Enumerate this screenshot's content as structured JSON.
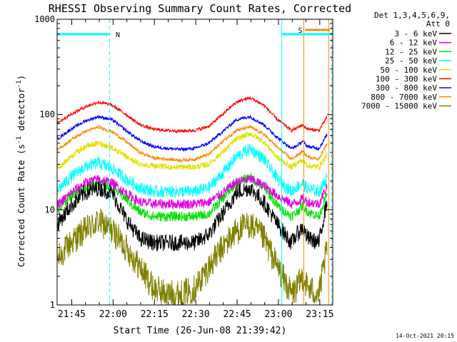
{
  "chart_data": {
    "type": "line",
    "title": "RHESSI Observing Summary Count Rates, Corrected",
    "xlabel": "Start Time (26-Jun-08 21:39:42)",
    "ylabel_main": "Corrected Count Rate (s",
    "ylabel_exp1": "-1",
    "ylabel_mid": " detector",
    "ylabel_exp2": "-1",
    "ylabel_end": ")",
    "yscale": "log",
    "ylim": [
      1,
      1000
    ],
    "xlim_minutes": [
      0,
      100
    ],
    "x_tick_minutes": [
      5.3,
      20.3,
      35.3,
      50.3,
      65.3,
      80.3,
      95.3
    ],
    "x_tick_labels": [
      "21:45",
      "22:00",
      "22:15",
      "22:30",
      "22:45",
      "23:00",
      "23:15"
    ],
    "y_tick_values": [
      1,
      10,
      100,
      1000
    ],
    "y_tick_labels": [
      "1",
      "10",
      "100",
      "1000"
    ],
    "legend_header": [
      "Det 1,3,4,5,6,9,",
      "Att 0"
    ],
    "time_samples_minutes": [
      0,
      5,
      10,
      15,
      20,
      25,
      30,
      35,
      40,
      45,
      50,
      55,
      60,
      65,
      70,
      75,
      80,
      85,
      87,
      89,
      91,
      95,
      98
    ],
    "series": [
      {
        "name": "3 - 6 keV",
        "color": "#000000",
        "jitter": 0.2,
        "values": [
          7,
          11,
          15,
          17,
          15,
          8,
          5,
          4.5,
          4.5,
          4.5,
          4.5,
          5.5,
          9,
          15,
          17,
          12,
          7,
          4.5,
          5.5,
          6.5,
          5,
          4.5,
          13
        ]
      },
      {
        "name": "6 - 12 keV",
        "color": "#e000e0",
        "jitter": 0.12,
        "values": [
          11,
          15,
          19,
          21,
          19,
          15,
          12,
          11.5,
          11.5,
          11.5,
          11.5,
          12,
          15,
          19.5,
          21,
          18,
          14,
          11.5,
          12,
          13,
          12,
          11.5,
          18
        ]
      },
      {
        "name": "12 - 25 keV",
        "color": "#00e000",
        "jitter": 0.12,
        "values": [
          10,
          14,
          17,
          19,
          17,
          13,
          9.5,
          8.5,
          8.5,
          8.5,
          8.5,
          9,
          13,
          19,
          22,
          17,
          11,
          8.5,
          9.5,
          11,
          9.5,
          8.5,
          15
        ]
      },
      {
        "name": "25 - 50 keV",
        "color": "#00ffff",
        "jitter": 0.15,
        "values": [
          16,
          22,
          28,
          31,
          27,
          21,
          17,
          15.5,
          15.5,
          15.5,
          15.5,
          17,
          24,
          36,
          44,
          34,
          21,
          15.5,
          17.5,
          19,
          16.5,
          15.5,
          22
        ]
      },
      {
        "name": "50 - 100 keV",
        "color": "#e0e000",
        "jitter": 0.07,
        "values": [
          27,
          36,
          46,
          50,
          45,
          36,
          30,
          29,
          28,
          28,
          28,
          30,
          40,
          55,
          63,
          52,
          35,
          28,
          31,
          33,
          29,
          28,
          38
        ]
      },
      {
        "name": "100 - 300 keV",
        "color": "#ff0000",
        "jitter": 0.04,
        "values": [
          82,
          100,
          120,
          135,
          125,
          100,
          78,
          70,
          68,
          67,
          68,
          75,
          100,
          135,
          150,
          125,
          88,
          68,
          72,
          78,
          70,
          68,
          95
        ]
      },
      {
        "name": "300 - 800 keV",
        "color": "#0000ff",
        "jitter": 0.04,
        "values": [
          55,
          70,
          85,
          95,
          88,
          68,
          53,
          46,
          44,
          43,
          44,
          50,
          66,
          88,
          95,
          78,
          57,
          44,
          47,
          52,
          46,
          44,
          62
        ]
      },
      {
        "name": "800 - 7000 keV",
        "color": "#ff8800",
        "jitter": 0.04,
        "values": [
          42,
          54,
          66,
          74,
          66,
          52,
          40,
          35,
          34,
          33,
          34,
          38,
          52,
          68,
          74,
          62,
          45,
          34,
          37,
          41,
          36,
          34,
          50
        ]
      },
      {
        "name": "7000 - 15000 keV",
        "color": "#808000",
        "jitter": 0.35,
        "values": [
          3,
          4.5,
          6,
          7.5,
          6,
          4,
          2.5,
          1.5,
          1.3,
          1.3,
          1.5,
          2.5,
          4,
          6,
          7,
          5,
          2.5,
          1.3,
          1.5,
          2,
          1.5,
          1.3,
          4
        ]
      }
    ],
    "flag_bars": [
      {
        "label": "N",
        "color": "#00ffff",
        "start_min": 0,
        "end_min": 19
      },
      {
        "label": "",
        "color": "#00ffff",
        "start_min": 81.5,
        "end_min": 100
      },
      {
        "label": "S",
        "color": "#ff8800",
        "start_min": 90,
        "end_min": 99
      }
    ],
    "vlines": [
      {
        "minute": 19,
        "color": "#00ffff",
        "style": "dashed"
      },
      {
        "minute": 81.5,
        "color": "#00ffff",
        "style": "solid"
      },
      {
        "minute": 89.5,
        "color": "#ff8800",
        "style": "solid"
      },
      {
        "minute": 98.5,
        "color": "#ff8800",
        "style": "solid"
      },
      {
        "minute": 99.6,
        "color": "#00ffff",
        "style": "dashed"
      }
    ]
  },
  "footer_timestamp": "14-Oct-2021 20:15"
}
